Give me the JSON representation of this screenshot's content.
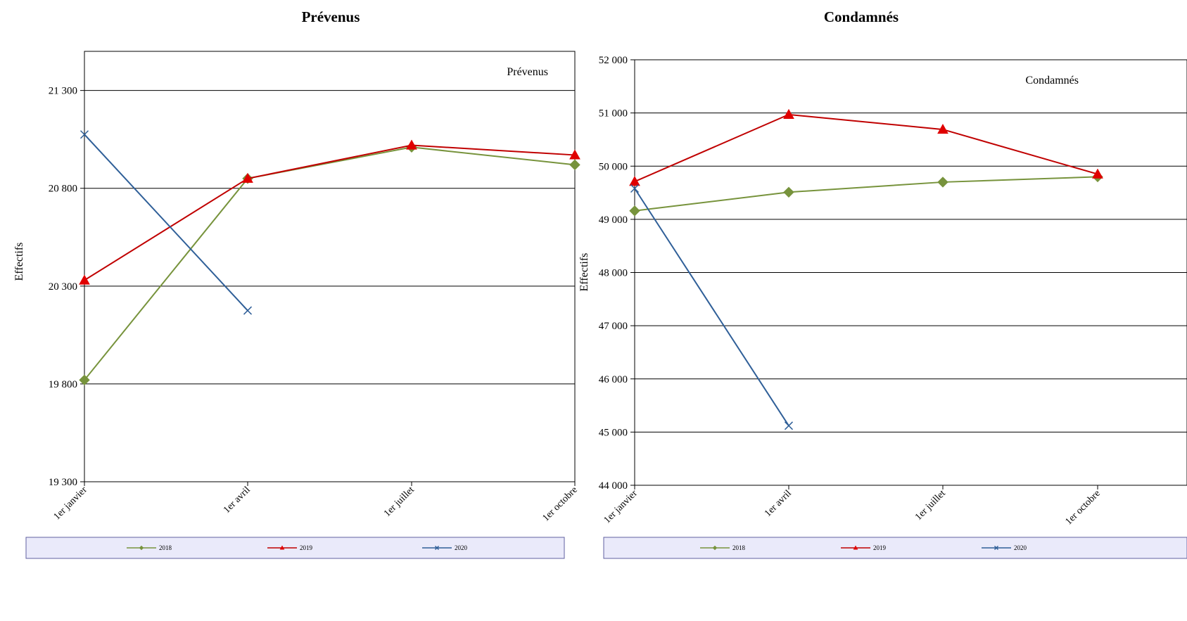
{
  "charts": [
    {
      "id": "prevenus",
      "title": "Prévenus",
      "inner_label": "Prévenus",
      "ylabel": "Effectifs"
    },
    {
      "id": "condamnes",
      "title": "Condamnés",
      "inner_label": "Condamnés",
      "ylabel": "Effectifs"
    }
  ],
  "chart_data": [
    {
      "type": "line",
      "title": "Prévenus",
      "ylabel": "Effectifs",
      "categories": [
        "1er janvier",
        "1er avril",
        "1er juillet",
        "1er octobre"
      ],
      "ylim": [
        19300,
        21500
      ],
      "yticks": [
        19300,
        19800,
        20300,
        20800,
        21300
      ],
      "ytick_labels": [
        "19 300",
        "19 800",
        "20 300",
        "20 800",
        "21 300"
      ],
      "grid": true,
      "legend": "bottom",
      "series": [
        {
          "name": "2018",
          "color": "#77933C",
          "marker": "diamond",
          "values": [
            19820,
            20850,
            21010,
            20920
          ]
        },
        {
          "name": "2019",
          "color": "#C00000",
          "marker": "triangle",
          "values": [
            20330,
            20850,
            21020,
            20970
          ]
        },
        {
          "name": "2020",
          "color": "#2F5F98",
          "marker": "x",
          "values": [
            21075,
            20175,
            null,
            null
          ]
        }
      ]
    },
    {
      "type": "line",
      "title": "Condamnés",
      "ylabel": "Effectifs",
      "categories": [
        "1er janvier",
        "1er avril",
        "1er juillet",
        "1er octobre"
      ],
      "ylim": [
        44000,
        52000
      ],
      "yticks": [
        44000,
        45000,
        46000,
        47000,
        48000,
        49000,
        50000,
        51000,
        52000
      ],
      "ytick_labels": [
        "44 000",
        "45 000",
        "46 000",
        "47 000",
        "48 000",
        "49 000",
        "50 000",
        "51 000",
        "52 000"
      ],
      "grid": true,
      "legend": "bottom",
      "series": [
        {
          "name": "2018",
          "color": "#77933C",
          "marker": "diamond",
          "values": [
            49160,
            49510,
            49700,
            49800
          ]
        },
        {
          "name": "2019",
          "color": "#C00000",
          "marker": "triangle",
          "values": [
            49710,
            50970,
            50690,
            49850
          ]
        },
        {
          "name": "2020",
          "color": "#2F5F98",
          "marker": "x",
          "values": [
            49580,
            45120,
            null,
            null
          ]
        }
      ]
    }
  ]
}
